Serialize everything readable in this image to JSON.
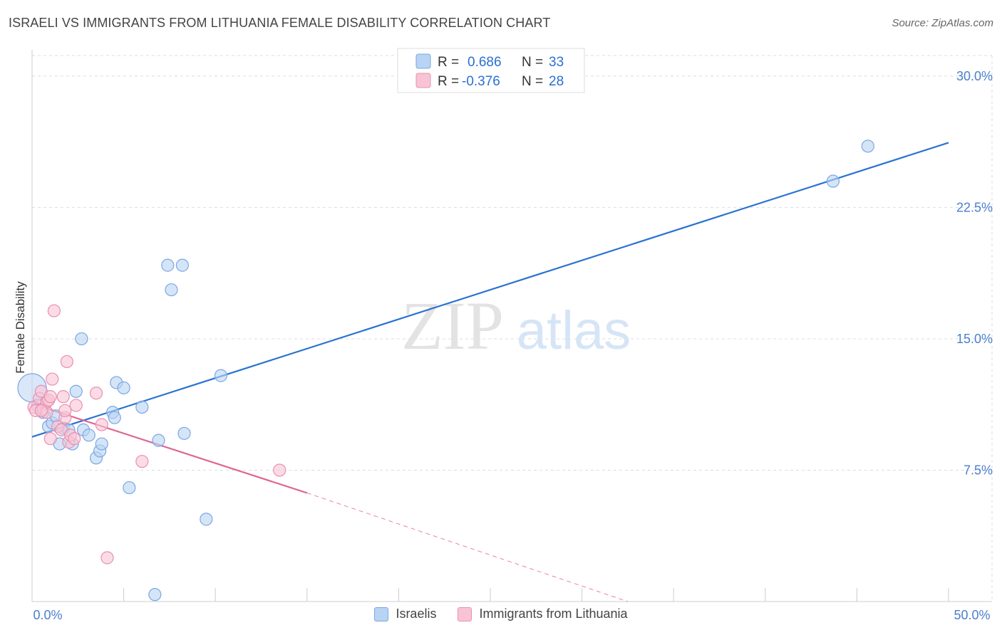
{
  "title": "ISRAELI VS IMMIGRANTS FROM LITHUANIA FEMALE DISABILITY CORRELATION CHART",
  "source": "Source: ZipAtlas.com",
  "watermark": {
    "zip": "ZIP",
    "atlas": "atlas"
  },
  "colors": {
    "blue_fill": "#b9d3f4",
    "blue_stroke": "#7aa7e2",
    "blue_line": "#2a72d1",
    "pink_fill": "#f8c4d5",
    "pink_stroke": "#e98fae",
    "pink_line": "#e06594",
    "axis_text": "#4a7fcf",
    "grid": "#dddddd"
  },
  "legend": {
    "rows": [
      {
        "r_label": "R =",
        "r_value": "0.686",
        "n_label": "N =",
        "n_value": "33",
        "series": "blue"
      },
      {
        "r_label": "R =",
        "r_value": "-0.376",
        "n_label": "N =",
        "n_value": "28",
        "series": "pink"
      }
    ]
  },
  "bottom_legend": [
    {
      "label": "Israelis",
      "series": "blue"
    },
    {
      "label": "Immigrants from Lithuania",
      "series": "pink"
    }
  ],
  "chart_data": {
    "type": "scatter",
    "ylabel": "Female Disability",
    "xlabel": "",
    "xlim": [
      0,
      50
    ],
    "ylim": [
      0,
      31.5
    ],
    "x_tick_labels": [
      {
        "value": 0,
        "label": "0.0%"
      },
      {
        "value": 50,
        "label": "50.0%"
      }
    ],
    "x_minor_ticks": [
      0,
      5,
      10,
      15,
      20,
      25,
      30,
      35,
      40,
      45,
      50
    ],
    "y_ticks": [
      {
        "value": 7.5,
        "label": "7.5%"
      },
      {
        "value": 15.0,
        "label": "15.0%"
      },
      {
        "value": 22.5,
        "label": "22.5%"
      },
      {
        "value": 30.0,
        "label": "30.0%"
      }
    ],
    "grid": true,
    "series": [
      {
        "name": "Israelis",
        "color": "blue",
        "points": [
          [
            0.0,
            12.2
          ],
          [
            0.3,
            11.2
          ],
          [
            0.6,
            10.8
          ],
          [
            0.9,
            10.0
          ],
          [
            1.1,
            10.2
          ],
          [
            1.3,
            10.6
          ],
          [
            1.5,
            9.0
          ],
          [
            1.7,
            9.9
          ],
          [
            2.0,
            9.8
          ],
          [
            2.2,
            9.0
          ],
          [
            2.4,
            12.0
          ],
          [
            2.7,
            15.0
          ],
          [
            2.8,
            9.8
          ],
          [
            3.1,
            9.5
          ],
          [
            3.5,
            8.2
          ],
          [
            3.7,
            8.6
          ],
          [
            3.8,
            9.0
          ],
          [
            4.4,
            10.8
          ],
          [
            4.5,
            10.5
          ],
          [
            4.6,
            12.5
          ],
          [
            5.0,
            12.2
          ],
          [
            5.3,
            6.5
          ],
          [
            6.0,
            11.1
          ],
          [
            6.7,
            0.4
          ],
          [
            6.9,
            9.2
          ],
          [
            7.4,
            19.2
          ],
          [
            7.6,
            17.8
          ],
          [
            8.2,
            19.2
          ],
          [
            8.3,
            9.6
          ],
          [
            9.5,
            4.7
          ],
          [
            10.3,
            12.9
          ],
          [
            43.7,
            24.0
          ],
          [
            45.6,
            26.0
          ]
        ],
        "trend": {
          "x_start": 0,
          "y_start": 9.4,
          "x_end": 50,
          "y_end": 26.2
        }
      },
      {
        "name": "Immigrants from Lithuania",
        "color": "pink",
        "points": [
          [
            0.1,
            11.1
          ],
          [
            0.2,
            10.9
          ],
          [
            0.4,
            11.6
          ],
          [
            0.5,
            12.0
          ],
          [
            0.6,
            11.0
          ],
          [
            0.8,
            10.8
          ],
          [
            0.8,
            11.4
          ],
          [
            0.9,
            11.5
          ],
          [
            1.0,
            9.3
          ],
          [
            1.0,
            11.7
          ],
          [
            1.1,
            12.7
          ],
          [
            1.2,
            16.6
          ],
          [
            1.4,
            10.0
          ],
          [
            1.6,
            9.8
          ],
          [
            1.7,
            11.7
          ],
          [
            1.8,
            10.5
          ],
          [
            1.8,
            10.9
          ],
          [
            1.9,
            13.7
          ],
          [
            2.0,
            9.1
          ],
          [
            2.1,
            9.5
          ],
          [
            2.3,
            9.3
          ],
          [
            2.4,
            11.2
          ],
          [
            3.5,
            11.9
          ],
          [
            3.8,
            10.1
          ],
          [
            4.1,
            2.5
          ],
          [
            6.0,
            8.0
          ],
          [
            13.5,
            7.5
          ],
          [
            0.5,
            10.9
          ]
        ],
        "trend": {
          "x_start": 0,
          "y_start": 11.3,
          "x_end": 15,
          "y_end": 6.2
        },
        "trend_dashed_extension": {
          "x_start": 15,
          "y_start": 6.2,
          "x_end": 32.5,
          "y_end": 0
        }
      }
    ]
  }
}
